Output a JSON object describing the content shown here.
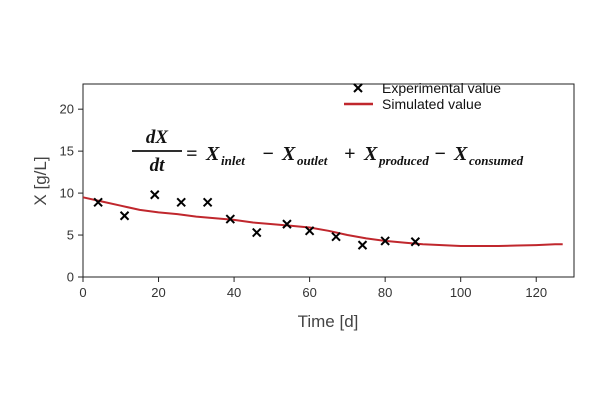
{
  "chart_data": {
    "type": "scatter",
    "title": "",
    "xlabel": "Time [d]",
    "ylabel": "X [g/L]",
    "xlim": [
      0,
      130
    ],
    "ylim": [
      0,
      23
    ],
    "xticks": [
      "0",
      "20",
      "40",
      "60",
      "80",
      "100",
      "120"
    ],
    "yticks": [
      "0",
      "5",
      "10",
      "15",
      "20"
    ],
    "grid": false,
    "legend_position": "top-right",
    "series": [
      {
        "name": "Experimental value",
        "marker": "x",
        "color": "#000000",
        "x": [
          4,
          11,
          19,
          26,
          33,
          39,
          46,
          54,
          60,
          67,
          74,
          80,
          88
        ],
        "y": [
          8.9,
          7.3,
          9.8,
          8.9,
          8.9,
          6.9,
          5.3,
          6.3,
          5.5,
          4.8,
          3.8,
          4.3,
          4.2
        ]
      },
      {
        "name": "Simulated value",
        "marker": "line",
        "color": "#c0272d",
        "x": [
          0,
          5,
          10,
          15,
          20,
          25,
          30,
          35,
          40,
          45,
          50,
          55,
          60,
          65,
          70,
          75,
          80,
          85,
          90,
          95,
          100,
          105,
          110,
          115,
          120,
          125,
          127
        ],
        "y": [
          9.5,
          9.0,
          8.5,
          8.0,
          7.7,
          7.5,
          7.2,
          7.0,
          6.8,
          6.5,
          6.3,
          6.1,
          5.9,
          5.5,
          5.0,
          4.6,
          4.3,
          4.1,
          3.9,
          3.8,
          3.7,
          3.7,
          3.7,
          3.75,
          3.8,
          3.9,
          3.9
        ]
      }
    ],
    "annotation": {
      "numerator": "dX",
      "denominator": "dt",
      "terms": [
        {
          "op": "=",
          "var": "X",
          "sub": "inlet"
        },
        {
          "op": "−",
          "var": "X",
          "sub": "outlet"
        },
        {
          "op": "+",
          "var": "X",
          "sub": "produced"
        },
        {
          "op": "−",
          "var": "X",
          "sub": "consumed"
        }
      ]
    }
  }
}
